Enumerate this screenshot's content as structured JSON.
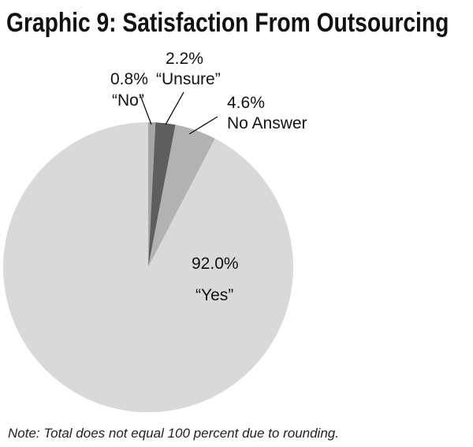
{
  "chart_data": {
    "type": "pie",
    "title": "Graphic 9: Satisfaction From Outsourcing",
    "slices": [
      {
        "label": "“No”",
        "value": 0.8,
        "value_label": "0.8%",
        "color": "#a6a6a6"
      },
      {
        "label": "“Unsure”",
        "value": 2.2,
        "value_label": "2.2%",
        "color": "#5e5e5e"
      },
      {
        "label": "No Answer",
        "value": 4.6,
        "value_label": "4.6%",
        "color": "#b2b2b2"
      },
      {
        "label": "“Yes”",
        "value": 92.0,
        "value_label": "92.0%",
        "color": "#d9d9d9"
      }
    ],
    "start": "top",
    "direction": "clockwise",
    "note": "Note: Total does not equal 100 percent due to rounding."
  }
}
